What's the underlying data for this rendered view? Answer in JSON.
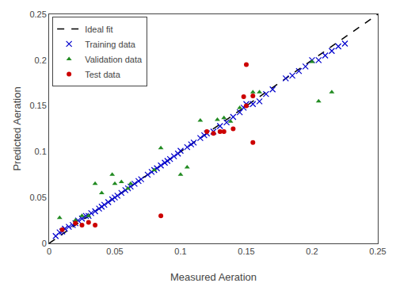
{
  "chart_data": {
    "type": "scatter",
    "xlabel": "Measured Aeration",
    "ylabel": "Predicted Aeration",
    "xlim": [
      0.0,
      0.25
    ],
    "ylim": [
      0.0,
      0.25
    ],
    "xticks": [
      0,
      0.05,
      0.1,
      0.15,
      0.2,
      0.25
    ],
    "yticks": [
      0,
      0.05,
      0.1,
      0.15,
      0.2,
      0.25
    ],
    "grid": false,
    "legend": "upper left",
    "series": [
      {
        "name": "Ideal fit",
        "type": "line",
        "line_style": "dashed",
        "color": "#000000",
        "x": [
          0.0,
          0.25
        ],
        "values": [
          0.0,
          0.25
        ]
      },
      {
        "name": "Training data",
        "type": "scatter",
        "marker": "x",
        "color": "#0000CD",
        "x": [
          0.005,
          0.008,
          0.01,
          0.012,
          0.015,
          0.018,
          0.02,
          0.022,
          0.025,
          0.028,
          0.03,
          0.032,
          0.035,
          0.038,
          0.04,
          0.042,
          0.045,
          0.048,
          0.05,
          0.052,
          0.055,
          0.058,
          0.06,
          0.062,
          0.065,
          0.068,
          0.07,
          0.075,
          0.078,
          0.08,
          0.082,
          0.085,
          0.088,
          0.09,
          0.092,
          0.095,
          0.098,
          0.1,
          0.105,
          0.108,
          0.11,
          0.115,
          0.118,
          0.12,
          0.125,
          0.13,
          0.135,
          0.14,
          0.145,
          0.148,
          0.15,
          0.155,
          0.16,
          0.165,
          0.17,
          0.18,
          0.185,
          0.19,
          0.195,
          0.2,
          0.205,
          0.21,
          0.215,
          0.22,
          0.225
        ],
        "values": [
          0.008,
          0.012,
          0.013,
          0.016,
          0.018,
          0.02,
          0.022,
          0.025,
          0.027,
          0.03,
          0.03,
          0.033,
          0.035,
          0.038,
          0.04,
          0.042,
          0.045,
          0.048,
          0.05,
          0.052,
          0.055,
          0.058,
          0.06,
          0.062,
          0.065,
          0.068,
          0.07,
          0.075,
          0.078,
          0.08,
          0.082,
          0.085,
          0.088,
          0.09,
          0.092,
          0.095,
          0.098,
          0.101,
          0.105,
          0.108,
          0.11,
          0.115,
          0.118,
          0.12,
          0.122,
          0.128,
          0.132,
          0.138,
          0.143,
          0.148,
          0.152,
          0.152,
          0.155,
          0.163,
          0.168,
          0.18,
          0.183,
          0.188,
          0.193,
          0.2,
          0.2,
          0.205,
          0.21,
          0.215,
          0.218
        ]
      },
      {
        "name": "Validation data",
        "type": "scatter",
        "marker": "triangle",
        "color": "#228B22",
        "x": [
          0.008,
          0.02,
          0.025,
          0.03,
          0.035,
          0.04,
          0.048,
          0.05,
          0.055,
          0.06,
          0.062,
          0.08,
          0.085,
          0.1,
          0.105,
          0.115,
          0.128,
          0.133,
          0.138,
          0.145,
          0.155,
          0.16,
          0.2,
          0.205,
          0.215
        ],
        "values": [
          0.028,
          0.025,
          0.03,
          0.03,
          0.065,
          0.055,
          0.075,
          0.065,
          0.067,
          0.06,
          0.065,
          0.08,
          0.104,
          0.075,
          0.083,
          0.134,
          0.135,
          0.137,
          0.133,
          0.148,
          0.165,
          0.165,
          0.198,
          0.155,
          0.165
        ]
      },
      {
        "name": "Test data",
        "type": "scatter",
        "marker": "circle",
        "color": "#CC0000",
        "x": [
          0.01,
          0.02,
          0.025,
          0.03,
          0.035,
          0.085,
          0.12,
          0.125,
          0.13,
          0.133,
          0.14,
          0.148,
          0.15,
          0.15,
          0.155,
          0.155
        ],
        "values": [
          0.015,
          0.022,
          0.02,
          0.023,
          0.02,
          0.03,
          0.122,
          0.12,
          0.122,
          0.122,
          0.125,
          0.16,
          0.15,
          0.195,
          0.11,
          0.161
        ]
      }
    ]
  }
}
